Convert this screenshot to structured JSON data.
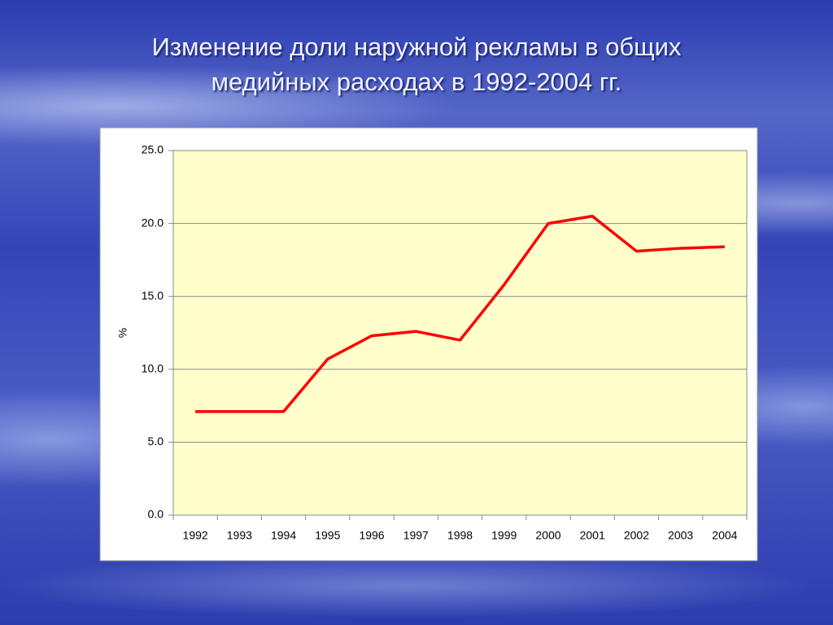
{
  "chart_data": {
    "type": "line",
    "title": "Изменение доли наружной рекламы в общих медийных расходах в 1992-2004 гг.",
    "ylabel": "%",
    "categories": [
      "1992",
      "1993",
      "1994",
      "1995",
      "1996",
      "1997",
      "1998",
      "1999",
      "2000",
      "2001",
      "2002",
      "2003",
      "2004"
    ],
    "values": [
      7.1,
      7.1,
      7.1,
      10.7,
      12.3,
      12.6,
      12.0,
      15.8,
      20.0,
      20.5,
      18.1,
      18.3,
      18.4
    ],
    "color": "#ff0000",
    "ylim": [
      0,
      25
    ],
    "yticks": [
      {
        "value": 0,
        "label": "0.0"
      },
      {
        "value": 5,
        "label": "5.0"
      },
      {
        "value": 10,
        "label": "10.0"
      },
      {
        "value": 15,
        "label": "15.0"
      },
      {
        "value": 20,
        "label": "20.0"
      },
      {
        "value": 25,
        "label": "25.0"
      }
    ],
    "grid": true
  }
}
